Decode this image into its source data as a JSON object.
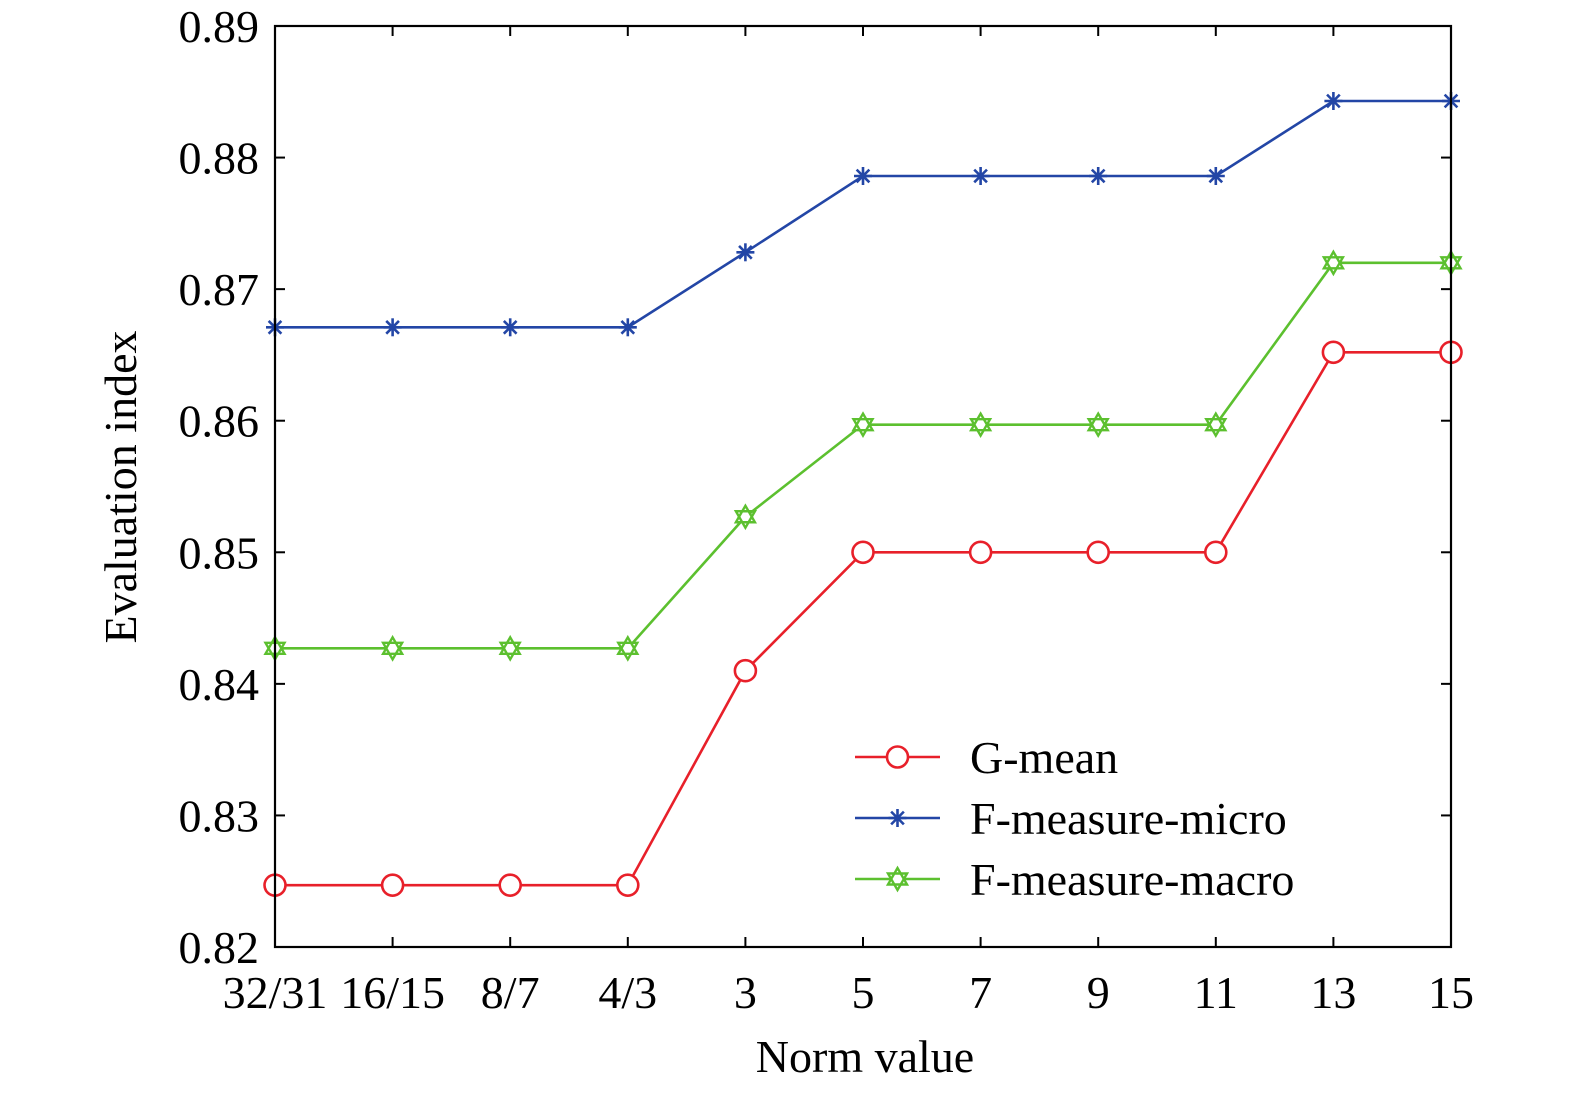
{
  "chart_data": {
    "type": "line",
    "title": "",
    "xlabel": "Norm value",
    "ylabel": "Evaluation index",
    "categories": [
      "32/31",
      "16/15",
      "8/7",
      "4/3",
      "3",
      "5",
      "7",
      "9",
      "11",
      "13",
      "15"
    ],
    "ylim": [
      0.82,
      0.89
    ],
    "yticks": [
      "0.82",
      "0.83",
      "0.84",
      "0.85",
      "0.86",
      "0.87",
      "0.88",
      "0.89"
    ],
    "grid": false,
    "legend_position": "bottom-right",
    "series": [
      {
        "name": "G-mean",
        "color": "#e8202a",
        "marker": "circle",
        "values": [
          0.8247,
          0.8247,
          0.8247,
          0.8247,
          0.841,
          0.85,
          0.85,
          0.85,
          0.85,
          0.8652,
          0.8652
        ]
      },
      {
        "name": "F-measure-micro",
        "color": "#2346a6",
        "marker": "asterisk",
        "values": [
          0.8671,
          0.8671,
          0.8671,
          0.8671,
          0.8728,
          0.8786,
          0.8786,
          0.8786,
          0.8786,
          0.8843,
          0.8843
        ]
      },
      {
        "name": "F-measure-macro",
        "color": "#5cc02f",
        "marker": "hexagram",
        "values": [
          0.8427,
          0.8427,
          0.8427,
          0.8427,
          0.8527,
          0.8597,
          0.8597,
          0.8597,
          0.8597,
          0.872,
          0.872
        ]
      }
    ]
  }
}
